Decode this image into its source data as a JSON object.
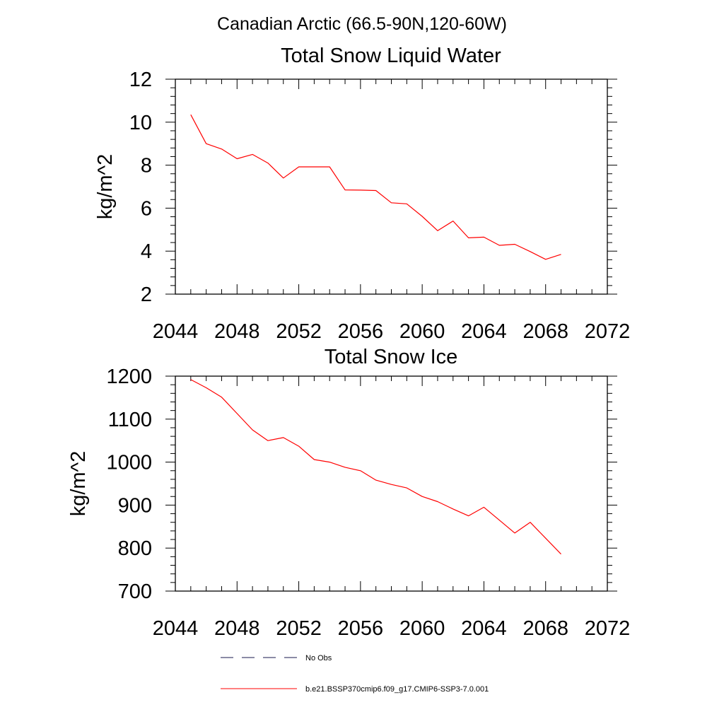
{
  "figure_title": "Canadian Arctic (66.5-90N,120-60W)",
  "chart_data": [
    {
      "type": "line",
      "title": "Total Snow Liquid Water",
      "xlabel": "",
      "ylabel": "kg/m^2",
      "xlim": [
        2044,
        2072
      ],
      "ylim": [
        2,
        12
      ],
      "x_ticks": [
        2044,
        2048,
        2052,
        2056,
        2060,
        2064,
        2068,
        2072
      ],
      "y_ticks": [
        2,
        4,
        6,
        8,
        10,
        12
      ],
      "grid": false,
      "series": [
        {
          "name": "b.e21.BSSP370cmip6.f09_g17.CMIP6-SSP3-7.0.001",
          "color": "#ff0000",
          "x": [
            2045,
            2046,
            2047,
            2048,
            2049,
            2050,
            2051,
            2052,
            2053,
            2054,
            2055,
            2056,
            2057,
            2058,
            2059,
            2060,
            2061,
            2062,
            2063,
            2064,
            2065,
            2066,
            2067,
            2068,
            2069
          ],
          "values": [
            10.35,
            9.0,
            8.75,
            8.3,
            8.5,
            8.1,
            7.4,
            7.92,
            7.92,
            7.92,
            6.85,
            6.84,
            6.82,
            6.25,
            6.2,
            5.62,
            4.95,
            5.4,
            4.62,
            4.65,
            4.27,
            4.32,
            3.98,
            3.62,
            3.85
          ]
        }
      ]
    },
    {
      "type": "line",
      "title": "Total Snow Ice",
      "xlabel": "",
      "ylabel": "kg/m^2",
      "xlim": [
        2044,
        2072
      ],
      "ylim": [
        700,
        1200
      ],
      "x_ticks": [
        2044,
        2048,
        2052,
        2056,
        2060,
        2064,
        2068,
        2072
      ],
      "y_ticks": [
        700,
        800,
        900,
        1000,
        1100,
        1200
      ],
      "grid": false,
      "series": [
        {
          "name": "b.e21.BSSP370cmip6.f09_g17.CMIP6-SSP3-7.0.001",
          "color": "#ff0000",
          "x": [
            2045,
            2046,
            2047,
            2048,
            2049,
            2050,
            2051,
            2052,
            2053,
            2054,
            2055,
            2056,
            2057,
            2058,
            2059,
            2060,
            2061,
            2062,
            2063,
            2064,
            2065,
            2066,
            2067,
            2068,
            2069
          ],
          "values": [
            1192,
            1173,
            1151,
            1113,
            1075,
            1050,
            1057,
            1037,
            1006,
            1000,
            988,
            980,
            958,
            948,
            940,
            920,
            908,
            891,
            875,
            895,
            865,
            835,
            860,
            823,
            786
          ]
        }
      ]
    }
  ],
  "legend": {
    "placement": "bottom",
    "entries": [
      {
        "label": "No Obs",
        "style": "dashed",
        "color": "#1a1a4d"
      },
      {
        "label": "b.e21.BSSP370cmip6.f09_g17.CMIP6-SSP3-7.0.001",
        "style": "solid",
        "color": "#ff0000"
      }
    ]
  }
}
